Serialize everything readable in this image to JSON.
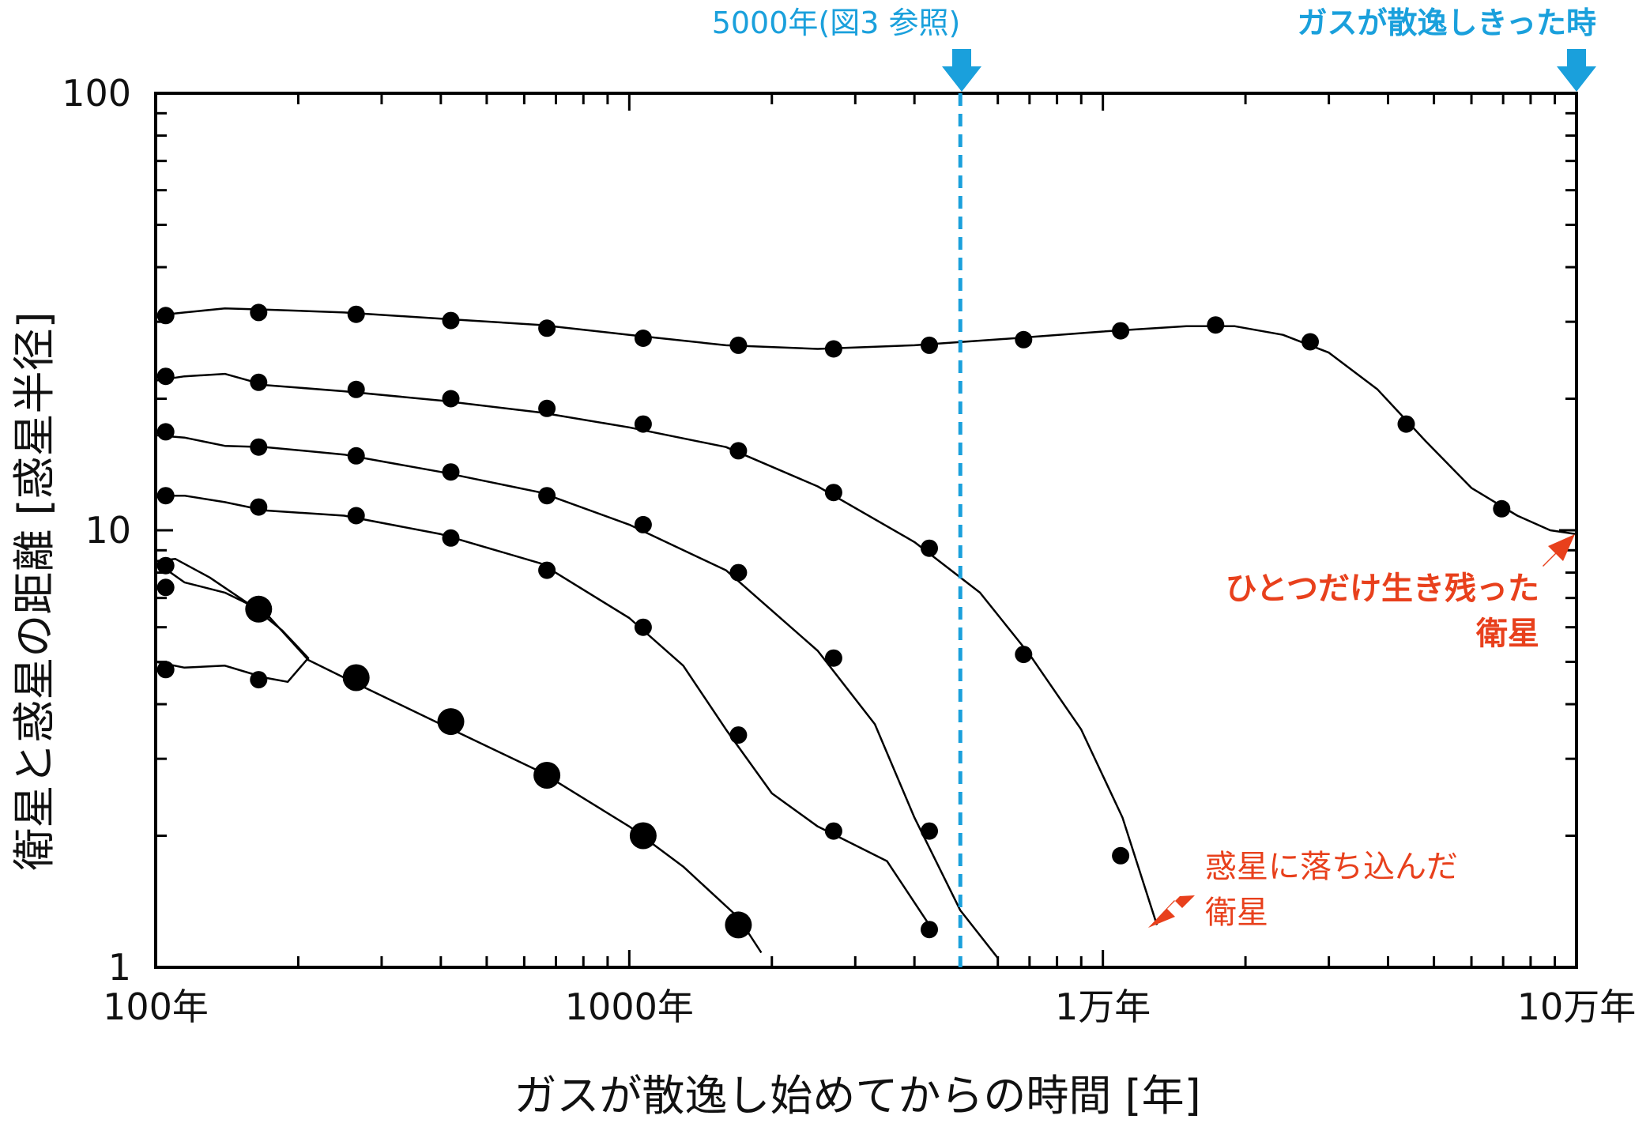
{
  "chart_data": {
    "type": "line",
    "xscale": "log",
    "yscale": "log",
    "xlim": [
      100,
      100000
    ],
    "ylim": [
      1,
      100
    ],
    "xlabel": "ガスが散逸し始めてからの時間 [年]",
    "ylabel": "衛星と惑星の距離 [惑星半径]",
    "xticks": [
      {
        "value": 100,
        "label": "100年"
      },
      {
        "value": 1000,
        "label": "1000年"
      },
      {
        "value": 10000,
        "label": "1万年"
      },
      {
        "value": 100000,
        "label": "10万年"
      }
    ],
    "yticks": [
      {
        "value": 1,
        "label": "1"
      },
      {
        "value": 10,
        "label": "10"
      },
      {
        "value": 100,
        "label": "100"
      }
    ],
    "series": [
      {
        "line": [
          [
            100,
            31
          ],
          [
            115,
            31.5
          ],
          [
            140,
            32.2
          ],
          [
            170,
            32
          ],
          [
            250,
            31.5
          ],
          [
            400,
            30.5
          ],
          [
            650,
            29.5
          ],
          [
            1000,
            28
          ],
          [
            1600,
            26.5
          ],
          [
            2500,
            26
          ],
          [
            4000,
            26.5
          ],
          [
            6500,
            27.5
          ],
          [
            10000,
            28.5
          ],
          [
            15000,
            29.3
          ],
          [
            19000,
            29.3
          ],
          [
            24000,
            28
          ],
          [
            30000,
            25.5
          ],
          [
            38000,
            21
          ],
          [
            48000,
            16
          ],
          [
            60000,
            12.5
          ],
          [
            75000,
            10.8
          ],
          [
            88000,
            10
          ],
          [
            100000,
            9.8
          ]
        ],
        "points": [
          [
            105,
            31
          ],
          [
            165,
            31.5
          ],
          [
            265,
            31.2
          ],
          [
            420,
            30.2
          ],
          [
            670,
            29
          ],
          [
            1070,
            27.5
          ],
          [
            1700,
            26.5
          ],
          [
            2700,
            26
          ],
          [
            4300,
            26.5
          ],
          [
            6800,
            27.3
          ],
          [
            10900,
            28.6
          ],
          [
            17300,
            29.5
          ],
          [
            27400,
            27
          ],
          [
            43700,
            17.5
          ],
          [
            69500,
            11.2
          ]
        ],
        "size": "small"
      },
      {
        "line": [
          [
            100,
            22
          ],
          [
            115,
            22.5
          ],
          [
            140,
            22.8
          ],
          [
            170,
            21.5
          ],
          [
            250,
            20.8
          ],
          [
            400,
            19.8
          ],
          [
            650,
            18.6
          ],
          [
            1000,
            17.2
          ],
          [
            1600,
            15.5
          ],
          [
            2500,
            12.6
          ],
          [
            4000,
            9.4
          ],
          [
            5500,
            7.2
          ],
          [
            7000,
            5.2
          ],
          [
            9000,
            3.5
          ],
          [
            11000,
            2.2
          ],
          [
            13000,
            1.25
          ]
        ],
        "points": [
          [
            105,
            22.5
          ],
          [
            165,
            21.8
          ],
          [
            265,
            21
          ],
          [
            420,
            20
          ],
          [
            670,
            19
          ],
          [
            1070,
            17.5
          ],
          [
            1700,
            15.2
          ],
          [
            2700,
            12.2
          ],
          [
            4300,
            9.1
          ],
          [
            6800,
            5.2
          ],
          [
            10900,
            1.8
          ]
        ],
        "size": "small"
      },
      {
        "line": [
          [
            100,
            16.5
          ],
          [
            115,
            16.3
          ],
          [
            140,
            15.6
          ],
          [
            170,
            15.5
          ],
          [
            250,
            14.9
          ],
          [
            400,
            13.6
          ],
          [
            650,
            12.2
          ],
          [
            1000,
            10.3
          ],
          [
            1600,
            8.1
          ],
          [
            2500,
            5.3
          ],
          [
            3300,
            3.6
          ],
          [
            4000,
            2.2
          ],
          [
            5000,
            1.35
          ],
          [
            6000,
            1.05
          ]
        ],
        "points": [
          [
            105,
            16.8
          ],
          [
            165,
            15.5
          ],
          [
            265,
            14.8
          ],
          [
            420,
            13.6
          ],
          [
            670,
            12
          ],
          [
            1070,
            10.3
          ],
          [
            1700,
            8
          ],
          [
            2700,
            5.1
          ],
          [
            4300,
            2.05
          ]
        ],
        "size": "small"
      },
      {
        "line": [
          [
            100,
            12
          ],
          [
            115,
            12
          ],
          [
            140,
            11.6
          ],
          [
            170,
            11.1
          ],
          [
            250,
            10.8
          ],
          [
            400,
            9.8
          ],
          [
            650,
            8.4
          ],
          [
            1000,
            6.3
          ],
          [
            1300,
            4.9
          ],
          [
            1600,
            3.5
          ],
          [
            2000,
            2.5
          ],
          [
            2500,
            2.1
          ],
          [
            3500,
            1.75
          ],
          [
            4300,
            1.25
          ]
        ],
        "points": [
          [
            105,
            12
          ],
          [
            165,
            11.3
          ],
          [
            265,
            10.8
          ],
          [
            420,
            9.6
          ],
          [
            670,
            8.1
          ],
          [
            1070,
            6
          ],
          [
            1700,
            3.4
          ],
          [
            2700,
            2.05
          ],
          [
            4300,
            1.22
          ]
        ],
        "size": "small"
      },
      {
        "line": [
          [
            95,
            8.8
          ],
          [
            115,
            7.6
          ],
          [
            140,
            7.2
          ],
          [
            170,
            6.5
          ],
          [
            210,
            5.05
          ],
          [
            250,
            4.6
          ],
          [
            400,
            3.6
          ],
          [
            650,
            2.8
          ],
          [
            1000,
            2.1
          ],
          [
            1300,
            1.7
          ],
          [
            1700,
            1.3
          ],
          [
            1900,
            1.08
          ]
        ],
        "points": [
          [
            165,
            6.6
          ],
          [
            265,
            4.6
          ],
          [
            420,
            3.65
          ],
          [
            670,
            2.75
          ],
          [
            1070,
            2
          ],
          [
            1700,
            1.25
          ]
        ],
        "size": "large"
      },
      {
        "line": [
          [
            100,
            5
          ],
          [
            115,
            4.85
          ],
          [
            140,
            4.9
          ],
          [
            170,
            4.6
          ],
          [
            190,
            4.5
          ],
          [
            210,
            5.1
          ],
          [
            185,
            5.9
          ],
          [
            160,
            6.7
          ],
          [
            130,
            7.8
          ],
          [
            110,
            8.6
          ],
          [
            100,
            8.5
          ],
          [
            95,
            8.1
          ],
          [
            100,
            7.9
          ]
        ],
        "points": [
          [
            105,
            4.8
          ],
          [
            165,
            4.55
          ],
          [
            105,
            7.4
          ],
          [
            105,
            8.3
          ]
        ],
        "size": "small"
      }
    ],
    "reference_line": {
      "x": 5000,
      "label": "5000年(図3 参照)"
    },
    "annotations": {
      "gas_dispersed": "ガスが散逸しきった時",
      "survivor_line1": "ひとつだけ生き残った",
      "survivor_line2": "衛星",
      "fallen_line1": "惑星に落ち込んだ",
      "fallen_line2": "衛星"
    },
    "colors": {
      "blue": "#1aa0dc",
      "red": "#e8401c",
      "line": "#000000"
    }
  }
}
